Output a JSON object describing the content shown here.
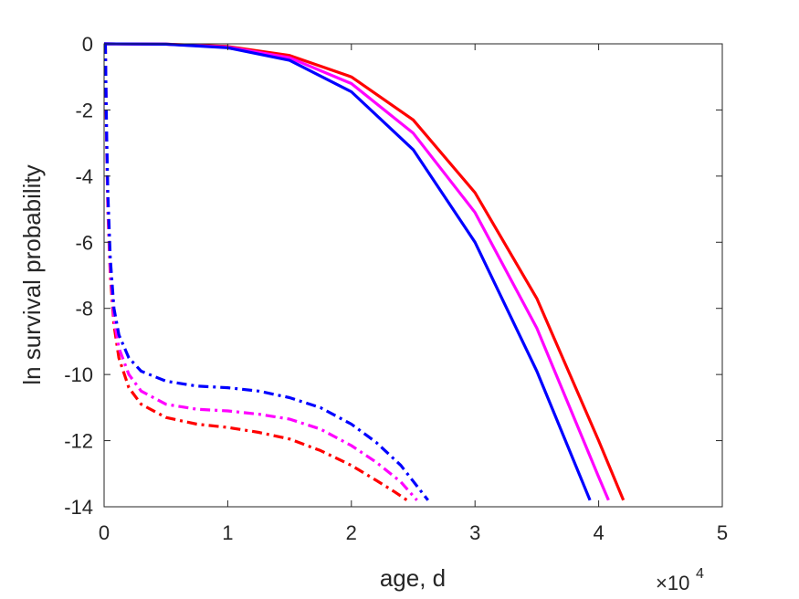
{
  "chart_data": {
    "type": "line",
    "title": "",
    "xlabel": "age, d",
    "ylabel": "ln survival probability",
    "x_multiplier_label": "×10",
    "x_multiplier_exponent": "4",
    "xlim": [
      0,
      5
    ],
    "ylim": [
      -14,
      0
    ],
    "xticks": [
      0,
      1,
      2,
      3,
      4,
      5
    ],
    "xtick_labels": [
      "0",
      "1",
      "2",
      "3",
      "4",
      "5"
    ],
    "yticks": [
      0,
      -2,
      -4,
      -6,
      -8,
      -10,
      -12,
      -14
    ],
    "ytick_labels": [
      "0",
      "-2",
      "-4",
      "-6",
      "-8",
      "-10",
      "-12",
      "-14"
    ],
    "grid": false,
    "legend": "none",
    "series": [
      {
        "color": "#ff0000",
        "style": "solid",
        "x": [
          0,
          0.5,
          1.0,
          1.5,
          2.0,
          2.5,
          3.0,
          3.5,
          4.0,
          4.2
        ],
        "y": [
          0,
          -0.01,
          -0.08,
          -0.35,
          -1.0,
          -2.3,
          -4.5,
          -7.7,
          -12.0,
          -13.8
        ]
      },
      {
        "color": "#ff00ff",
        "style": "solid",
        "x": [
          0,
          0.5,
          1.0,
          1.5,
          2.0,
          2.5,
          3.0,
          3.5,
          4.0,
          4.08
        ],
        "y": [
          0,
          -0.01,
          -0.1,
          -0.42,
          -1.2,
          -2.7,
          -5.1,
          -8.6,
          -13.1,
          -13.8
        ]
      },
      {
        "color": "#0000ff",
        "style": "solid",
        "x": [
          0,
          0.5,
          1.0,
          1.5,
          2.0,
          2.5,
          3.0,
          3.5,
          3.93
        ],
        "y": [
          0,
          -0.01,
          -0.12,
          -0.5,
          -1.45,
          -3.2,
          -6.0,
          -9.9,
          -13.8
        ]
      },
      {
        "color": "#ff0000",
        "style": "dashdot",
        "x": [
          0.01,
          0.02,
          0.03,
          0.05,
          0.08,
          0.12,
          0.2,
          0.3,
          0.5,
          0.75,
          1.0,
          1.25,
          1.5,
          1.75,
          2.0,
          2.2,
          2.35,
          2.45
        ],
        "y": [
          0,
          -3.0,
          -5.0,
          -7.0,
          -8.5,
          -9.5,
          -10.4,
          -10.9,
          -11.3,
          -11.5,
          -11.6,
          -11.75,
          -11.95,
          -12.3,
          -12.75,
          -13.2,
          -13.55,
          -13.8
        ]
      },
      {
        "color": "#ff00ff",
        "style": "dashdot",
        "x": [
          0.01,
          0.02,
          0.03,
          0.05,
          0.08,
          0.12,
          0.2,
          0.3,
          0.5,
          0.75,
          1.0,
          1.25,
          1.5,
          1.75,
          2.0,
          2.2,
          2.4,
          2.53
        ],
        "y": [
          0,
          -2.8,
          -4.8,
          -6.8,
          -8.3,
          -9.2,
          -10.0,
          -10.5,
          -10.9,
          -11.05,
          -11.1,
          -11.2,
          -11.35,
          -11.65,
          -12.15,
          -12.65,
          -13.25,
          -13.8
        ]
      },
      {
        "color": "#0000ff",
        "style": "dashdot",
        "x": [
          0.01,
          0.02,
          0.03,
          0.05,
          0.08,
          0.12,
          0.2,
          0.3,
          0.5,
          0.75,
          1.0,
          1.25,
          1.5,
          1.75,
          2.0,
          2.2,
          2.4,
          2.62
        ],
        "y": [
          0,
          -2.6,
          -4.5,
          -6.5,
          -8.0,
          -8.8,
          -9.5,
          -9.9,
          -10.2,
          -10.35,
          -10.4,
          -10.5,
          -10.7,
          -11.0,
          -11.5,
          -12.05,
          -12.75,
          -13.8
        ]
      }
    ]
  }
}
